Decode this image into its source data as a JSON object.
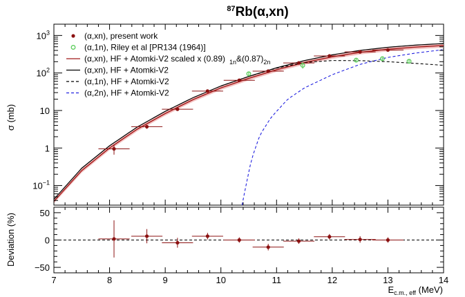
{
  "colors": {
    "data": "#8b1111",
    "riley": "#5ccd5c",
    "scaled": "#a01717",
    "band": "#f2b8b8",
    "hf_axn": "#000000",
    "hf_a1n": "#000000",
    "hf_a2n": "#2020e0"
  },
  "chart_data": [
    {
      "type": "scatter",
      "panel": "cross-section",
      "title": "87Rb(α,xn)",
      "title_parts": {
        "sup": "87",
        "main": "Rb(α,xn)"
      },
      "ylabel": "σ (mb)",
      "xlim": [
        7,
        14
      ],
      "ylim": [
        0.03,
        2000
      ],
      "yscale": "log",
      "x_ticks": [
        "7",
        "8",
        "9",
        "10",
        "11",
        "12",
        "13",
        "14"
      ],
      "y_tick_labels": [
        {
          "base": "10",
          "exp": "−1",
          "value": 0.1
        },
        {
          "base": "1",
          "exp": "",
          "value": 1
        },
        {
          "base": "10",
          "exp": "",
          "value": 10
        },
        {
          "base": "10",
          "exp": "2",
          "value": 100
        },
        {
          "base": "10",
          "exp": "3",
          "value": 1000
        }
      ],
      "legend_position": "top-left",
      "legend": [
        {
          "key": "present",
          "label": "(α,xn), present work"
        },
        {
          "key": "riley",
          "label": "(α,1n), Riley et al [PR134 (1964)]"
        },
        {
          "key": "scaled",
          "label": "(α,xn), HF + Atomki-V2 scaled x (0.89)",
          "sub1": "1n",
          "mid": "&(0.87)",
          "sub2": "2n"
        },
        {
          "key": "hf_axn",
          "label": "(α,xn), HF + Atomki-V2"
        },
        {
          "key": "hf_a1n",
          "label": "(α,1n), HF + Atomki-V2"
        },
        {
          "key": "hf_a2n",
          "label": "(α,2n), HF + Atomki-V2"
        }
      ],
      "series": [
        {
          "name": "(α,xn), present work",
          "x": [
            8.08,
            8.67,
            9.22,
            9.76,
            10.33,
            10.85,
            11.4,
            11.95,
            12.5,
            13.0
          ],
          "y": [
            0.95,
            3.7,
            10.8,
            33,
            64,
            112,
            185,
            285,
            365,
            410
          ],
          "xerr": [
            0.28,
            0.28,
            0.28,
            0.28,
            0.28,
            0.28,
            0.28,
            0.28,
            0.28,
            0.28
          ],
          "yerr_rel": [
            0.3,
            0.12,
            0.08,
            0.07,
            0.07,
            0.07,
            0.07,
            0.07,
            0.07,
            0.07
          ]
        },
        {
          "name": "(α,1n), Riley et al [PR134 (1964)]",
          "x": [
            10.5,
            11.47,
            12.43,
            12.9,
            13.38
          ],
          "y": [
            95,
            160,
            220,
            240,
            205
          ],
          "yerr_rel": [
            0.1,
            0.18,
            0.1,
            0.08,
            0.1
          ]
        },
        {
          "name": "(α,xn), HF + Atomki-V2 scaled x (0.89)1n&(0.87)2n",
          "x": [
            7.0,
            7.5,
            8.0,
            8.5,
            9.0,
            9.5,
            10.0,
            10.5,
            11.0,
            11.5,
            12.0,
            12.5,
            13.0,
            13.5,
            14.0
          ],
          "y": [
            0.038,
            0.25,
            1.0,
            3.2,
            8.3,
            19.5,
            40,
            72,
            122,
            190,
            270,
            355,
            430,
            490,
            540
          ],
          "band_rel": 0.12
        },
        {
          "name": "(α,xn), HF + Atomki-V2",
          "x": [
            7.0,
            7.5,
            8.0,
            8.5,
            9.0,
            9.5,
            10.0,
            10.5,
            11.0,
            11.5,
            12.0,
            12.5,
            13.0,
            13.5,
            14.0
          ],
          "y": [
            0.043,
            0.29,
            1.15,
            3.65,
            9.5,
            22,
            45,
            81,
            138,
            214,
            305,
            400,
            485,
            555,
            610
          ]
        },
        {
          "name": "(α,1n), HF + Atomki-V2",
          "x": [
            10.0,
            10.5,
            11.0,
            11.5,
            12.0,
            12.5,
            13.0,
            13.5,
            14.0
          ],
          "y": [
            45,
            81,
            135,
            190,
            215,
            213,
            200,
            180,
            160
          ]
        },
        {
          "name": "(α,2n), HF + Atomki-V2",
          "x": [
            10.38,
            10.45,
            10.55,
            10.7,
            10.9,
            11.2,
            11.5,
            12.0,
            12.5,
            13.0,
            13.5,
            14.0
          ],
          "y": [
            0.03,
            0.1,
            0.5,
            2.2,
            6.5,
            20,
            40,
            90,
            170,
            260,
            340,
            420
          ]
        }
      ]
    },
    {
      "type": "scatter",
      "panel": "deviation",
      "xlabel_main": "E",
      "xlabel_sub": "c.m., eff",
      "xlabel_unit": " (MeV)",
      "ylabel": "Deviation (%)",
      "xlim": [
        7,
        14
      ],
      "ylim": [
        -60,
        60
      ],
      "x_ticks": [
        "7",
        "8",
        "9",
        "10",
        "11",
        "12",
        "13",
        "14"
      ],
      "y_ticks": [
        "50",
        "0",
        "−50"
      ],
      "reference_line": 0,
      "series": [
        {
          "name": "deviation",
          "x": [
            8.08,
            8.67,
            9.22,
            9.76,
            10.33,
            10.85,
            11.4,
            11.95,
            12.5,
            13.0
          ],
          "y": [
            2,
            7,
            -5,
            7,
            0,
            -13,
            -2,
            6,
            1,
            0
          ],
          "xerr": [
            0.28,
            0.28,
            0.28,
            0.28,
            0.28,
            0.28,
            0.28,
            0.28,
            0.28,
            0.28
          ],
          "yerr": [
            34,
            13,
            9,
            6,
            5,
            6,
            5,
            5,
            6,
            5
          ]
        }
      ]
    }
  ]
}
